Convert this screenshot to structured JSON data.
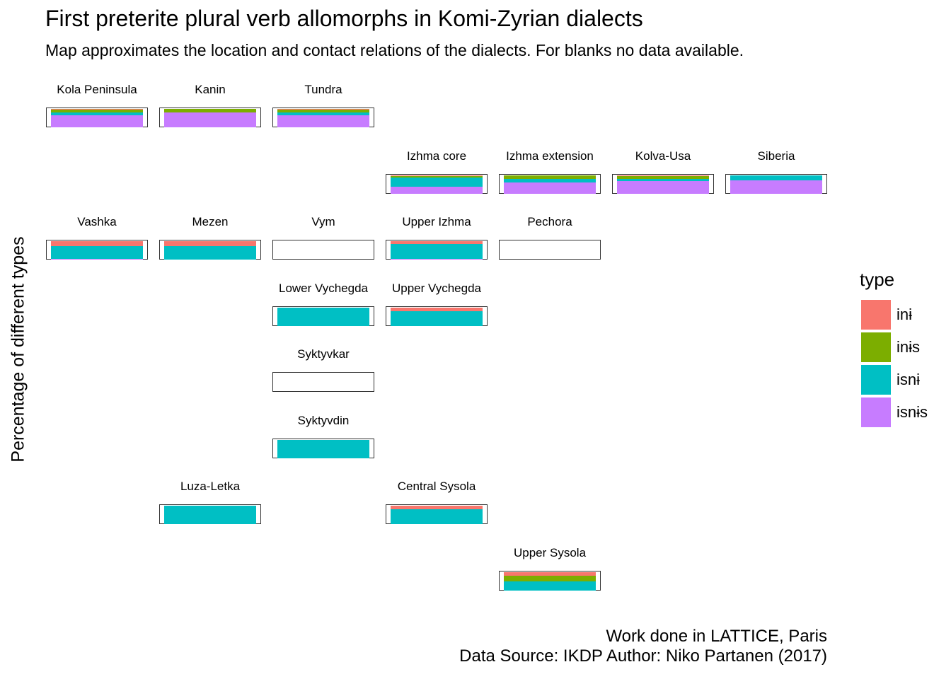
{
  "title": "First preterite plural verb allomorphs in Komi-Zyrian dialects",
  "subtitle": "Map approximates the location and contact relations of the dialects. For blanks no data available.",
  "caption_line1": "Work done in LATTICE, Paris",
  "caption_line2": "Data Source: IKDP Author: Niko Partanen (2017)",
  "chart_data": {
    "type": "bar",
    "subtype": "stacked 100% bar, faceted by dialect (map layout)",
    "ylabel": "Percentage of different types",
    "ylim": [
      0,
      1
    ],
    "legend": {
      "title": "type",
      "position": "right",
      "entries": [
        {
          "label": "inɨ",
          "color": "#F8766D"
        },
        {
          "label": "inɨs",
          "color": "#7CAE00"
        },
        {
          "label": "isnɨ",
          "color": "#00BFC4"
        },
        {
          "label": "isnɨs",
          "color": "#C77CFF"
        }
      ]
    },
    "series_order": [
      "inɨ",
      "inɨs",
      "isnɨ",
      "isnɨs"
    ],
    "panels": [
      {
        "name": "Kola Peninsula",
        "row": 1,
        "col": 1,
        "values": [
          0.04,
          0.16,
          0.16,
          0.64
        ]
      },
      {
        "name": "Kanin",
        "row": 1,
        "col": 2,
        "values": [
          0.0,
          0.2,
          0.0,
          0.8
        ]
      },
      {
        "name": "Tundra",
        "row": 1,
        "col": 3,
        "values": [
          0.05,
          0.15,
          0.15,
          0.65
        ]
      },
      {
        "name": "Izhma core",
        "row": 2,
        "col": 4,
        "values": [
          0.05,
          0.05,
          0.5,
          0.4
        ]
      },
      {
        "name": "Izhma extension",
        "row": 2,
        "col": 5,
        "values": [
          0.0,
          0.2,
          0.2,
          0.6
        ]
      },
      {
        "name": "Kolva-Usa",
        "row": 2,
        "col": 6,
        "values": [
          0.05,
          0.15,
          0.1,
          0.7
        ]
      },
      {
        "name": "Siberia",
        "row": 2,
        "col": 7,
        "values": [
          0.0,
          0.0,
          0.25,
          0.75
        ]
      },
      {
        "name": "Vashka",
        "row": 3,
        "col": 1,
        "values": [
          0.25,
          0.0,
          0.7,
          0.05
        ]
      },
      {
        "name": "Mezen",
        "row": 3,
        "col": 2,
        "values": [
          0.25,
          0.0,
          0.75,
          0.0
        ]
      },
      {
        "name": "Vym",
        "row": 3,
        "col": 3,
        "values": null
      },
      {
        "name": "Upper Izhma",
        "row": 3,
        "col": 4,
        "values": [
          0.15,
          0.0,
          0.8,
          0.05
        ]
      },
      {
        "name": "Pechora",
        "row": 3,
        "col": 5,
        "values": null
      },
      {
        "name": "Lower Vychegda",
        "row": 4,
        "col": 3,
        "values": [
          0.0,
          0.0,
          1.0,
          0.0
        ]
      },
      {
        "name": "Upper Vychegda",
        "row": 4,
        "col": 4,
        "values": [
          0.2,
          0.0,
          0.8,
          0.0
        ]
      },
      {
        "name": "Syktyvkar",
        "row": 5,
        "col": 3,
        "values": null
      },
      {
        "name": "Syktyvdin",
        "row": 6,
        "col": 3,
        "values": [
          0.0,
          0.0,
          1.0,
          0.0
        ]
      },
      {
        "name": "Luza-Letka",
        "row": 7,
        "col": 2,
        "values": [
          0.0,
          0.0,
          1.0,
          0.0
        ]
      },
      {
        "name": "Central Sysola",
        "row": 7,
        "col": 4,
        "values": [
          0.2,
          0.0,
          0.8,
          0.0
        ]
      },
      {
        "name": "Upper Sysola",
        "row": 8,
        "col": 5,
        "values": [
          0.2,
          0.3,
          0.5,
          0.0
        ]
      }
    ]
  }
}
